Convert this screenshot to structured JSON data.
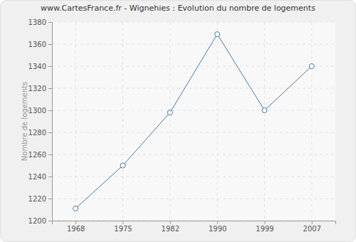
{
  "chart_data": {
    "type": "line",
    "title": "www.CartesFrance.fr - Wignehies : Evolution du nombre de logements",
    "y_label": "Nombre de logements",
    "categories": [
      "1968",
      "1975",
      "1982",
      "1990",
      "1999",
      "2007"
    ],
    "values": [
      1211,
      1250,
      1298,
      1369,
      1300,
      1340
    ],
    "color": "#4a78a8",
    "marker": "circle",
    "ylim": [
      1200,
      1380
    ],
    "yticks": [
      1200,
      1220,
      1240,
      1260,
      1280,
      1300,
      1320,
      1340,
      1360,
      1380
    ],
    "grid": true
  }
}
